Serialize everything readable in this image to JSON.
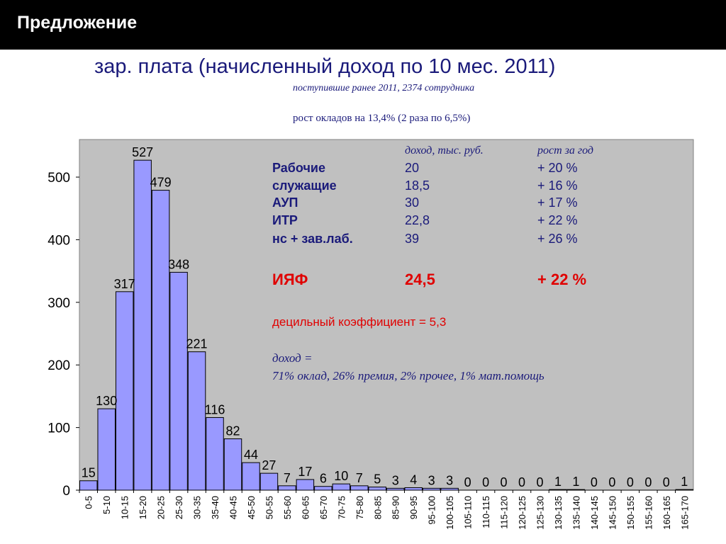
{
  "header": {
    "title": "Предложение"
  },
  "chart_title": "зар. плата (начисленный доход по 10 мес. 2011)",
  "subtitle": "поступившие ранее 2011, 2374 сотрудника",
  "growth_note": "рост окладов на 13,4% (2 раза по 6,5%)",
  "info": {
    "col_income": "доход, тыс. руб.",
    "col_growth": "рост за год",
    "rows": [
      {
        "label": "Рабочие",
        "income": "20",
        "growth": "+ 20 %"
      },
      {
        "label": "служащие",
        "income": "18,5",
        "growth": "+ 16 %"
      },
      {
        "label": "АУП",
        "income": "30",
        "growth": "+ 17 %"
      },
      {
        "label": "ИТР",
        "income": "22,8",
        "growth": "+ 22 %"
      },
      {
        "label": "нс + зав.лаб.",
        "income": "39",
        "growth": "+ 26 %"
      }
    ],
    "total": {
      "label": "ИЯФ",
      "income": "24,5",
      "growth": "+ 22 %"
    },
    "decile": "децильный коэффициент = 5,3",
    "composition_label": "доход =",
    "composition": "71% оклад, 26% премия, 2% прочее, 1% мат.помощь"
  },
  "colors": {
    "bar": "#9999ff",
    "plot_bg": "#c0c0c0",
    "accent_red": "#e00000",
    "text_blue": "#1a1a7a"
  },
  "chart_data": {
    "type": "bar",
    "categories": [
      "0-5",
      "5-10",
      "10-15",
      "15-20",
      "20-25",
      "25-30",
      "30-35",
      "35-40",
      "40-45",
      "45-50",
      "50-55",
      "55-60",
      "60-65",
      "65-70",
      "70-75",
      "75-80",
      "80-85",
      "85-90",
      "90-95",
      "95-100",
      "100-105",
      "105-110",
      "110-115",
      "115-120",
      "120-125",
      "125-130",
      "130-135",
      "135-140",
      "140-145",
      "145-150",
      "150-155",
      "155-160",
      "160-165",
      "165-170"
    ],
    "values": [
      15,
      130,
      317,
      527,
      479,
      348,
      221,
      116,
      82,
      44,
      27,
      7,
      17,
      6,
      10,
      7,
      5,
      3,
      4,
      3,
      3,
      0,
      0,
      0,
      0,
      0,
      1,
      1,
      0,
      0,
      0,
      0,
      0,
      1
    ],
    "yticks": [
      0,
      100,
      200,
      300,
      400,
      500
    ],
    "ylim": [
      0,
      560
    ],
    "grid": false,
    "legend": "none"
  }
}
